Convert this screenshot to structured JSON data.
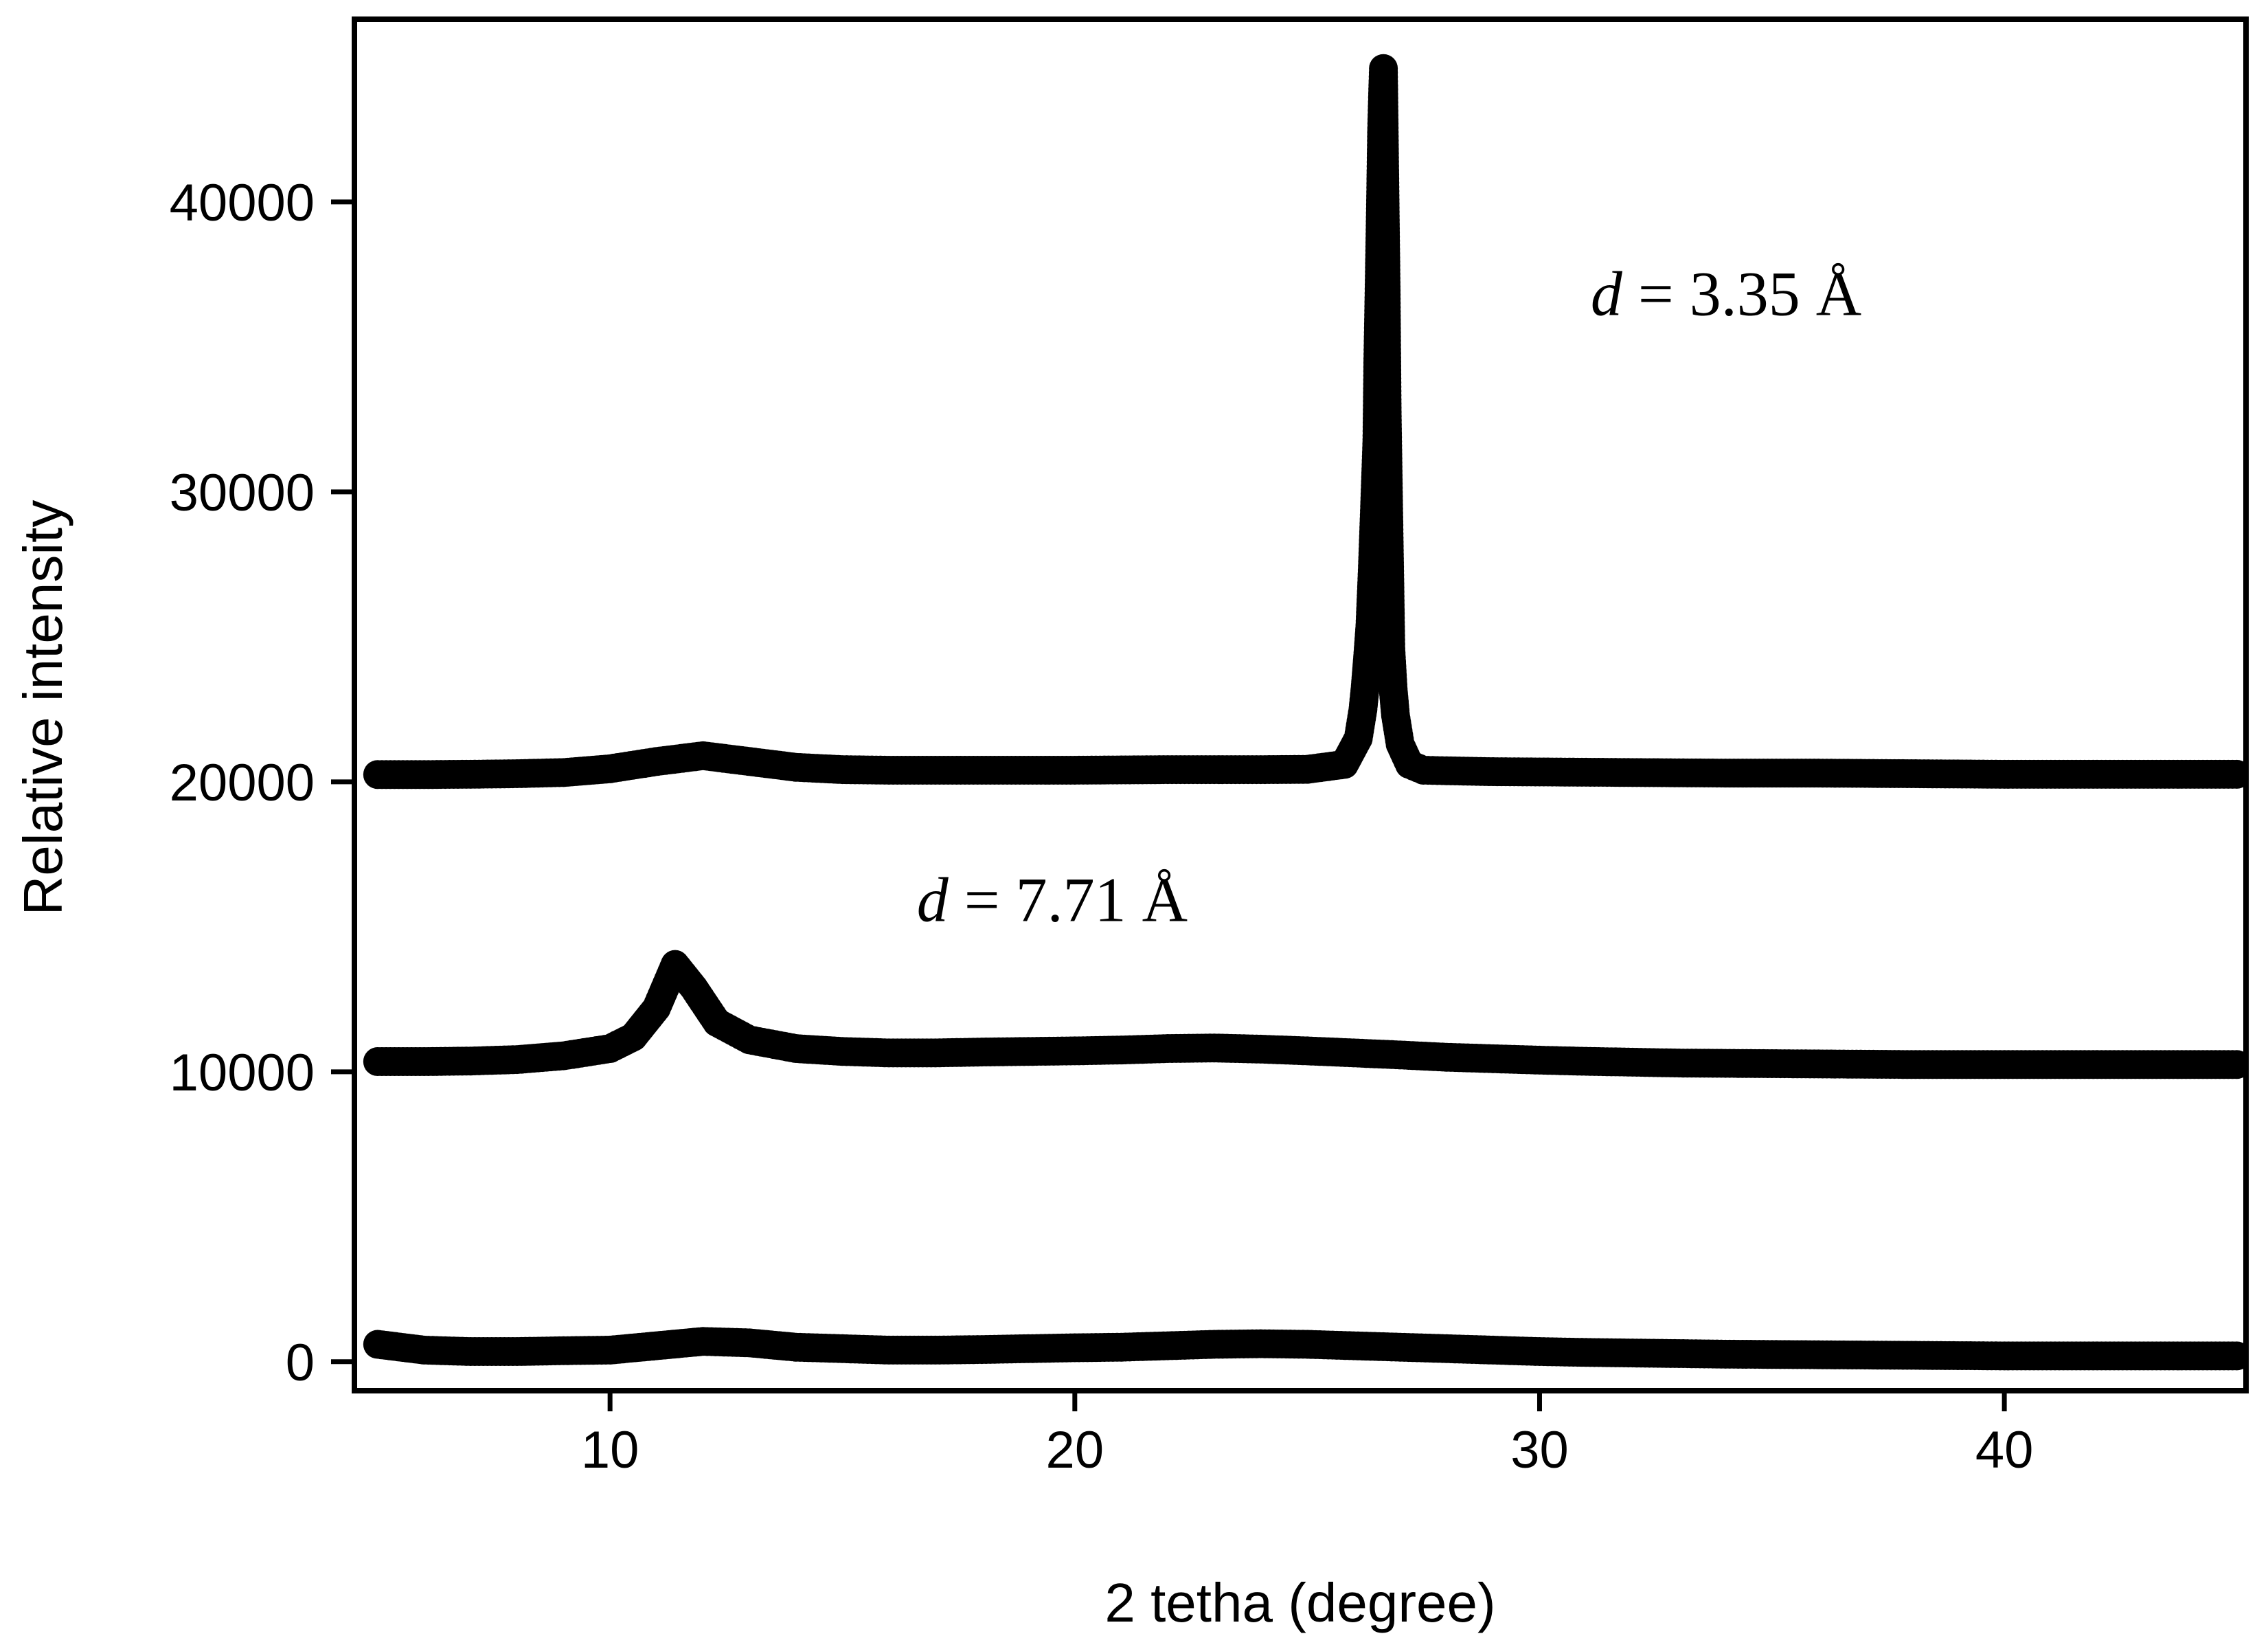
{
  "chart_data": {
    "type": "scatter",
    "xlabel": "2 tetha (degree)",
    "ylabel": "Relative intensity",
    "xlim": [
      4.5,
      45.2
    ],
    "ylim": [
      -1000,
      46300
    ],
    "xticks": [
      10,
      20,
      30,
      40
    ],
    "yticks": [
      0,
      10000,
      20000,
      30000,
      40000
    ],
    "grid": false,
    "marker_color": "#000000",
    "annotations": [
      {
        "text_italic": "d",
        "text": " = 3.35 Å",
        "x": 31.1,
        "y": 36100
      },
      {
        "text_italic": "d",
        "text": " = 7.71 Å",
        "x": 16.6,
        "y": 15200
      }
    ],
    "series": [
      {
        "points": [
          [
            5,
            600
          ],
          [
            6,
            400
          ],
          [
            7,
            350
          ],
          [
            8,
            350
          ],
          [
            9,
            380
          ],
          [
            10,
            400
          ],
          [
            11,
            550
          ],
          [
            12,
            700
          ],
          [
            13,
            650
          ],
          [
            14,
            500
          ],
          [
            15,
            450
          ],
          [
            16,
            400
          ],
          [
            17,
            400
          ],
          [
            18,
            420
          ],
          [
            19,
            450
          ],
          [
            20,
            480
          ],
          [
            21,
            500
          ],
          [
            22,
            550
          ],
          [
            23,
            600
          ],
          [
            24,
            620
          ],
          [
            25,
            600
          ],
          [
            26,
            550
          ],
          [
            27,
            500
          ],
          [
            28,
            450
          ],
          [
            29,
            400
          ],
          [
            30,
            350
          ],
          [
            31,
            320
          ],
          [
            32,
            300
          ],
          [
            33,
            280
          ],
          [
            34,
            260
          ],
          [
            35,
            250
          ],
          [
            36,
            240
          ],
          [
            37,
            230
          ],
          [
            38,
            220
          ],
          [
            39,
            210
          ],
          [
            40,
            200
          ],
          [
            41,
            200
          ],
          [
            42,
            200
          ],
          [
            43,
            200
          ],
          [
            44,
            200
          ],
          [
            45,
            200
          ]
        ]
      },
      {
        "points": [
          [
            5,
            10350
          ],
          [
            6,
            10350
          ],
          [
            7,
            10370
          ],
          [
            8,
            10420
          ],
          [
            9,
            10550
          ],
          [
            10,
            10800
          ],
          [
            10.5,
            11200
          ],
          [
            11,
            12200
          ],
          [
            11.4,
            13700
          ],
          [
            11.8,
            12900
          ],
          [
            12.3,
            11700
          ],
          [
            13,
            11100
          ],
          [
            14,
            10800
          ],
          [
            15,
            10700
          ],
          [
            16,
            10650
          ],
          [
            17,
            10650
          ],
          [
            18,
            10680
          ],
          [
            19,
            10700
          ],
          [
            20,
            10720
          ],
          [
            21,
            10750
          ],
          [
            22,
            10800
          ],
          [
            23,
            10820
          ],
          [
            24,
            10780
          ],
          [
            25,
            10720
          ],
          [
            26,
            10650
          ],
          [
            27,
            10580
          ],
          [
            28,
            10500
          ],
          [
            29,
            10450
          ],
          [
            30,
            10400
          ],
          [
            31,
            10360
          ],
          [
            32,
            10330
          ],
          [
            33,
            10300
          ],
          [
            34,
            10290
          ],
          [
            35,
            10280
          ],
          [
            36,
            10270
          ],
          [
            37,
            10260
          ],
          [
            38,
            10250
          ],
          [
            39,
            10250
          ],
          [
            40,
            10250
          ],
          [
            41,
            10250
          ],
          [
            42,
            10250
          ],
          [
            43,
            10250
          ],
          [
            44,
            10250
          ],
          [
            45,
            10250
          ]
        ]
      },
      {
        "points": [
          [
            5,
            20250
          ],
          [
            6,
            20250
          ],
          [
            7,
            20260
          ],
          [
            8,
            20280
          ],
          [
            9,
            20320
          ],
          [
            10,
            20450
          ],
          [
            11,
            20700
          ],
          [
            12,
            20900
          ],
          [
            13,
            20700
          ],
          [
            14,
            20500
          ],
          [
            15,
            20420
          ],
          [
            16,
            20400
          ],
          [
            17,
            20400
          ],
          [
            18,
            20400
          ],
          [
            19,
            20400
          ],
          [
            20,
            20400
          ],
          [
            21,
            20410
          ],
          [
            22,
            20420
          ],
          [
            23,
            20420
          ],
          [
            24,
            20420
          ],
          [
            25,
            20430
          ],
          [
            25.8,
            20600
          ],
          [
            26.1,
            21500
          ],
          [
            26.2,
            22500
          ],
          [
            26.25,
            23300
          ],
          [
            26.3,
            24300
          ],
          [
            26.35,
            25400
          ],
          [
            26.4,
            27300
          ],
          [
            26.45,
            29500
          ],
          [
            26.5,
            31800
          ],
          [
            26.52,
            34600
          ],
          [
            26.55,
            37300
          ],
          [
            26.58,
            40200
          ],
          [
            26.6,
            42400
          ],
          [
            26.62,
            43600
          ],
          [
            26.64,
            44600
          ],
          [
            26.67,
            40800
          ],
          [
            26.7,
            36800
          ],
          [
            26.72,
            32900
          ],
          [
            26.75,
            29700
          ],
          [
            26.78,
            26700
          ],
          [
            26.8,
            24600
          ],
          [
            26.85,
            23200
          ],
          [
            26.9,
            22300
          ],
          [
            27.0,
            21300
          ],
          [
            27.2,
            20600
          ],
          [
            27.5,
            20400
          ],
          [
            28,
            20380
          ],
          [
            29,
            20350
          ],
          [
            30,
            20340
          ],
          [
            31,
            20330
          ],
          [
            32,
            20320
          ],
          [
            33,
            20310
          ],
          [
            34,
            20300
          ],
          [
            35,
            20300
          ],
          [
            36,
            20300
          ],
          [
            37,
            20290
          ],
          [
            38,
            20280
          ],
          [
            39,
            20270
          ],
          [
            40,
            20260
          ],
          [
            41,
            20260
          ],
          [
            42,
            20260
          ],
          [
            43,
            20260
          ],
          [
            44,
            20260
          ],
          [
            45,
            20260
          ]
        ]
      }
    ]
  }
}
